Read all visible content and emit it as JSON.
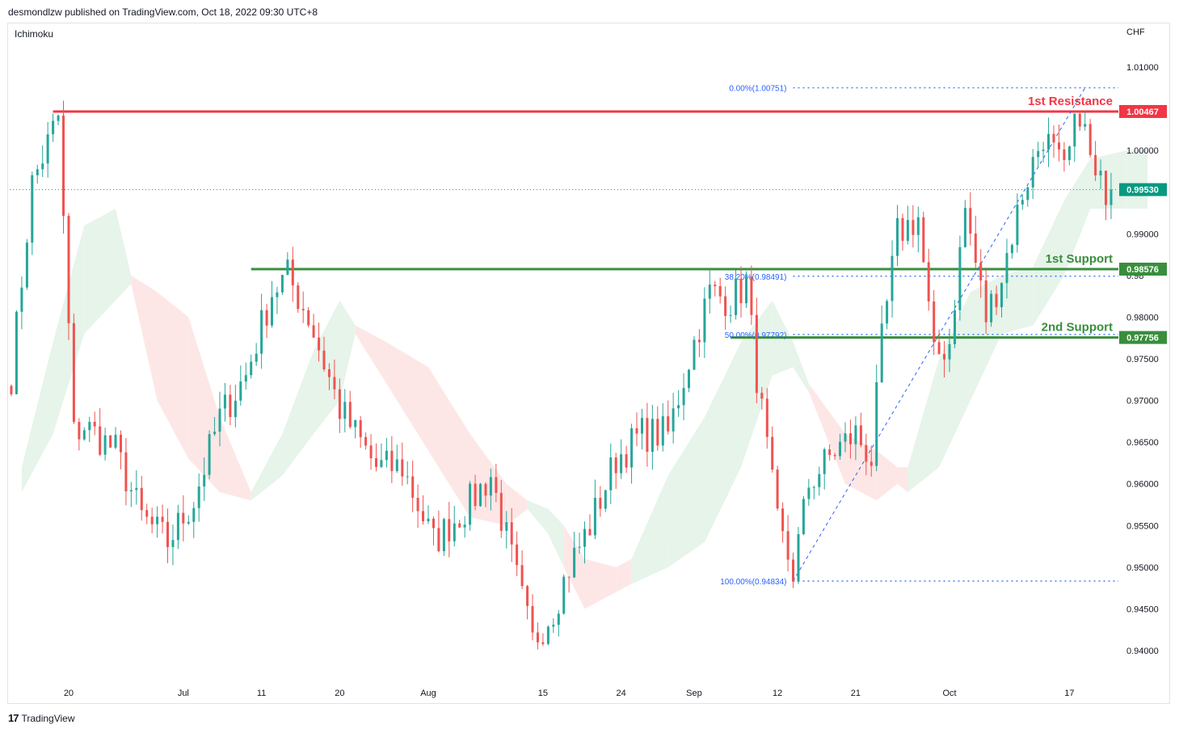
{
  "header": {
    "publisher": "desmondlzw published on TradingView.com, Oct 18, 2022 09:30 UTC+8"
  },
  "indicator": {
    "name": "Ichimoku"
  },
  "footer": {
    "brand": "TradingView"
  },
  "colors": {
    "up": "#26a69a",
    "down": "#ef5350",
    "resistance": "#f23645",
    "support": "#388e3c",
    "fib": "#2962ff",
    "cloud_bull": "#e6f4ea",
    "cloud_bear": "#fde7e6",
    "last_price": "#089981"
  },
  "chart_data": {
    "type": "candlestick",
    "symbol": "",
    "currency": "CHF",
    "ylim": [
      0.9365,
      1.0085
    ],
    "y_ticks": [
      "1.01000",
      "1.00000",
      "0.99000",
      "0.98000",
      "0.97500",
      "0.97000",
      "0.96500",
      "0.96000",
      "0.95500",
      "0.95000",
      "0.94500",
      "0.94000"
    ],
    "y_tick_values": [
      1.01,
      1.0,
      0.99,
      0.98,
      0.975,
      0.97,
      0.965,
      0.96,
      0.955,
      0.95,
      0.945,
      0.94
    ],
    "extra_axis_label": "0.98",
    "x_ticks": [
      {
        "label": "20",
        "index": 11
      },
      {
        "label": "Jul",
        "index": 33
      },
      {
        "label": "11",
        "index": 48
      },
      {
        "label": "20",
        "index": 63
      },
      {
        "label": "Aug",
        "index": 80
      },
      {
        "label": "15",
        "index": 102
      },
      {
        "label": "24",
        "index": 117
      },
      {
        "label": "Sep",
        "index": 131
      },
      {
        "label": "12",
        "index": 147
      },
      {
        "label": "21",
        "index": 162
      },
      {
        "label": "Oct",
        "index": 180
      },
      {
        "label": "17",
        "index": 203
      }
    ],
    "n_bars": 212,
    "anchors": [
      [
        0,
        0.973
      ],
      [
        4,
        0.996
      ],
      [
        9,
        1.004
      ],
      [
        12,
        0.966
      ],
      [
        14,
        0.967
      ],
      [
        20,
        0.964
      ],
      [
        25,
        0.956
      ],
      [
        30,
        0.953
      ],
      [
        35,
        0.958
      ],
      [
        40,
        0.968
      ],
      [
        45,
        0.973
      ],
      [
        50,
        0.983
      ],
      [
        53,
        0.985
      ],
      [
        57,
        0.98
      ],
      [
        63,
        0.969
      ],
      [
        70,
        0.962
      ],
      [
        75,
        0.962
      ],
      [
        81,
        0.953
      ],
      [
        87,
        0.957
      ],
      [
        92,
        0.961
      ],
      [
        96,
        0.951
      ],
      [
        100,
        0.941
      ],
      [
        104,
        0.945
      ],
      [
        107,
        0.95
      ],
      [
        111,
        0.955
      ],
      [
        116,
        0.963
      ],
      [
        121,
        0.966
      ],
      [
        126,
        0.966
      ],
      [
        130,
        0.975
      ],
      [
        134,
        0.983
      ],
      [
        138,
        0.982
      ],
      [
        141,
        0.984
      ],
      [
        143,
        0.973
      ],
      [
        147,
        0.955
      ],
      [
        150,
        0.9494
      ],
      [
        153,
        0.96
      ],
      [
        158,
        0.964
      ],
      [
        162,
        0.966
      ],
      [
        165,
        0.963
      ],
      [
        167,
        0.977
      ],
      [
        170,
        0.99
      ],
      [
        174,
        0.992
      ],
      [
        177,
        0.975
      ],
      [
        180,
        0.977
      ],
      [
        183,
        0.993
      ],
      [
        187,
        0.98
      ],
      [
        190,
        0.985
      ],
      [
        194,
        0.995
      ],
      [
        198,
        1.002
      ],
      [
        202,
        0.997
      ],
      [
        205,
        1.005
      ],
      [
        208,
        0.996
      ],
      [
        211,
        0.9953
      ]
    ],
    "ichimoku_cloud": [
      {
        "x": 2,
        "a": 0.962,
        "b": 0.959,
        "type": "bull"
      },
      {
        "x": 8,
        "a": 0.977,
        "b": 0.966,
        "type": "bull"
      },
      {
        "x": 14,
        "a": 0.991,
        "b": 0.978,
        "type": "bull"
      },
      {
        "x": 20,
        "a": 0.993,
        "b": 0.982,
        "type": "bull"
      },
      {
        "x": 23,
        "a": 0.985,
        "b": 0.984,
        "type": "bear"
      },
      {
        "x": 28,
        "a": 0.983,
        "b": 0.97,
        "type": "bear"
      },
      {
        "x": 34,
        "a": 0.98,
        "b": 0.963,
        "type": "bear"
      },
      {
        "x": 40,
        "a": 0.968,
        "b": 0.959,
        "type": "bear"
      },
      {
        "x": 46,
        "a": 0.959,
        "b": 0.958,
        "type": "bull"
      },
      {
        "x": 52,
        "a": 0.966,
        "b": 0.961,
        "type": "bull"
      },
      {
        "x": 58,
        "a": 0.976,
        "b": 0.966,
        "type": "bull"
      },
      {
        "x": 63,
        "a": 0.982,
        "b": 0.97,
        "type": "bull"
      },
      {
        "x": 66,
        "a": 0.979,
        "b": 0.978,
        "type": "bear"
      },
      {
        "x": 72,
        "a": 0.977,
        "b": 0.972,
        "type": "bear"
      },
      {
        "x": 80,
        "a": 0.974,
        "b": 0.964,
        "type": "bear"
      },
      {
        "x": 88,
        "a": 0.966,
        "b": 0.956,
        "type": "bear"
      },
      {
        "x": 95,
        "a": 0.96,
        "b": 0.955,
        "type": "bear"
      },
      {
        "x": 99,
        "a": 0.958,
        "b": 0.957,
        "type": "bull"
      },
      {
        "x": 103,
        "a": 0.957,
        "b": 0.954,
        "type": "bull"
      },
      {
        "x": 106,
        "a": 0.955,
        "b": 0.95,
        "type": "bear"
      },
      {
        "x": 110,
        "a": 0.951,
        "b": 0.945,
        "type": "bear"
      },
      {
        "x": 116,
        "a": 0.95,
        "b": 0.947,
        "type": "bear"
      },
      {
        "x": 119,
        "a": 0.951,
        "b": 0.948,
        "type": "bull"
      },
      {
        "x": 126,
        "a": 0.961,
        "b": 0.95,
        "type": "bull"
      },
      {
        "x": 133,
        "a": 0.968,
        "b": 0.953,
        "type": "bull"
      },
      {
        "x": 140,
        "a": 0.977,
        "b": 0.962,
        "type": "bull"
      },
      {
        "x": 146,
        "a": 0.982,
        "b": 0.973,
        "type": "bull"
      },
      {
        "x": 150,
        "a": 0.977,
        "b": 0.974,
        "type": "bull"
      },
      {
        "x": 153,
        "a": 0.972,
        "b": 0.971,
        "type": "bear"
      },
      {
        "x": 160,
        "a": 0.966,
        "b": 0.96,
        "type": "bear"
      },
      {
        "x": 166,
        "a": 0.964,
        "b": 0.958,
        "type": "bear"
      },
      {
        "x": 170,
        "a": 0.962,
        "b": 0.96,
        "type": "bear"
      },
      {
        "x": 172,
        "a": 0.962,
        "b": 0.959,
        "type": "bull"
      },
      {
        "x": 178,
        "a": 0.975,
        "b": 0.962,
        "type": "bull"
      },
      {
        "x": 184,
        "a": 0.983,
        "b": 0.97,
        "type": "bull"
      },
      {
        "x": 190,
        "a": 0.985,
        "b": 0.978,
        "type": "bull"
      },
      {
        "x": 196,
        "a": 0.986,
        "b": 0.979,
        "type": "bull"
      },
      {
        "x": 202,
        "a": 0.994,
        "b": 0.985,
        "type": "bull"
      },
      {
        "x": 207,
        "a": 0.999,
        "b": 0.993,
        "type": "bull"
      },
      {
        "x": 214,
        "a": 1.0,
        "b": 0.993,
        "type": "bull"
      },
      {
        "x": 218,
        "a": 1.0,
        "b": 0.993,
        "type": "bull"
      }
    ],
    "horizontal_levels": [
      {
        "name": "1st Resistance",
        "label": "1st Resistance",
        "value": 1.00467,
        "price_label": "1.00467",
        "color": "#f23645",
        "start_index": 8
      },
      {
        "name": "1st Support",
        "label": "1st Support",
        "value": 0.98576,
        "price_label": "0.98576",
        "color": "#388e3c",
        "start_index": 46
      },
      {
        "name": "2nd Support",
        "label": "2nd Support",
        "value": 0.97756,
        "price_label": "0.97756",
        "color": "#388e3c",
        "start_index": 138
      }
    ],
    "last_price": {
      "value": 0.9953,
      "label": "0.99530"
    },
    "fibonacci": {
      "from_index": 150,
      "to_index": 206,
      "levels": [
        {
          "label": "0.00%(1.00751)",
          "value": 1.00751
        },
        {
          "label": "38.20%(0.98491)",
          "value": 0.98491
        },
        {
          "label": "50.00%(0.97792)",
          "value": 0.97792
        },
        {
          "label": "100.00%(0.94834)",
          "value": 0.94834
        }
      ]
    }
  }
}
